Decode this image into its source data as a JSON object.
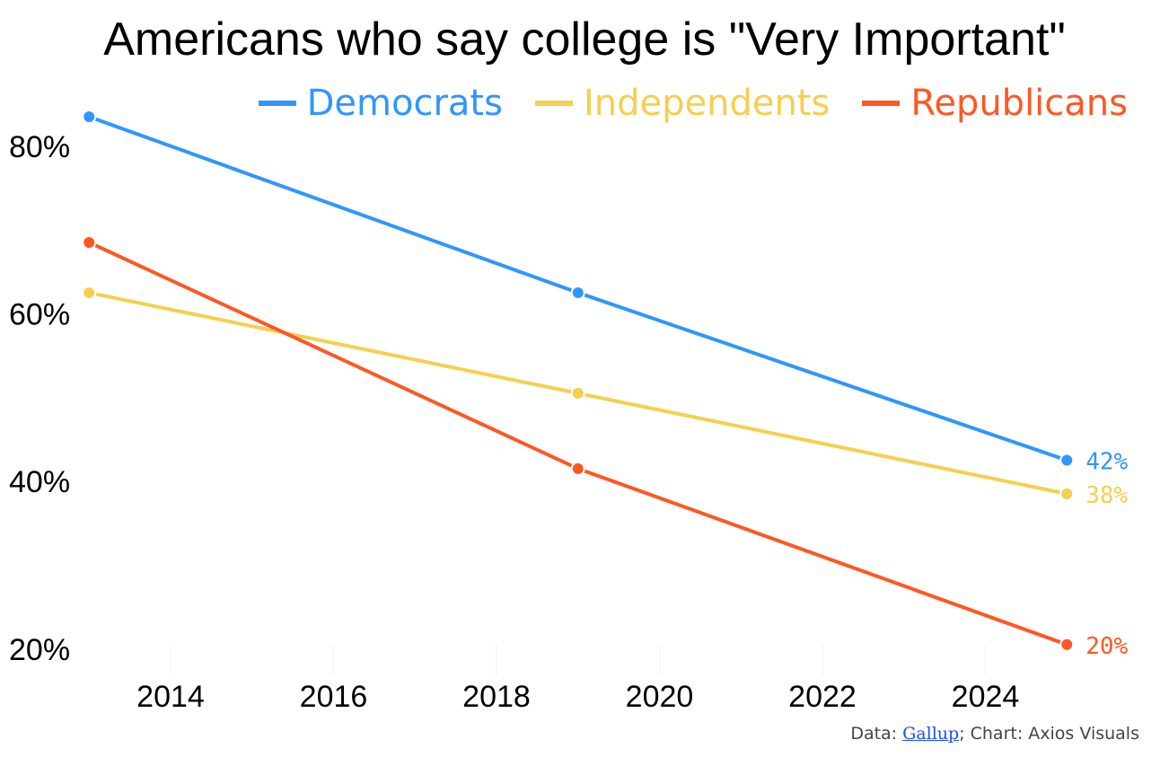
{
  "chart_data": {
    "type": "line",
    "title": "Americans who say college is \"Very Important\"",
    "x": [
      2013,
      2019,
      2025
    ],
    "series": [
      {
        "name": "Democrats",
        "color": "#2f96ff",
        "values": [
          83,
          62,
          42
        ],
        "end_label": "42%"
      },
      {
        "name": "Independents",
        "color": "#f5cf4e",
        "values": [
          62,
          50,
          38
        ],
        "end_label": "38%"
      },
      {
        "name": "Republicans",
        "color": "#ff5722",
        "values": [
          68,
          41,
          20
        ],
        "end_label": "20%"
      }
    ],
    "x_ticks": [
      "2014",
      "2016",
      "2018",
      "2020",
      "2022",
      "2024"
    ],
    "y_ticks": [
      "20%",
      "40%",
      "60%",
      "80%"
    ],
    "xlim": [
      2013,
      2025
    ],
    "ylim": [
      18,
      86
    ],
    "grid": false,
    "legend": "top-right"
  },
  "caption": {
    "prefix": "Data: ",
    "source_link": "Gallup",
    "suffix": "; Chart: Axios Visuals"
  }
}
